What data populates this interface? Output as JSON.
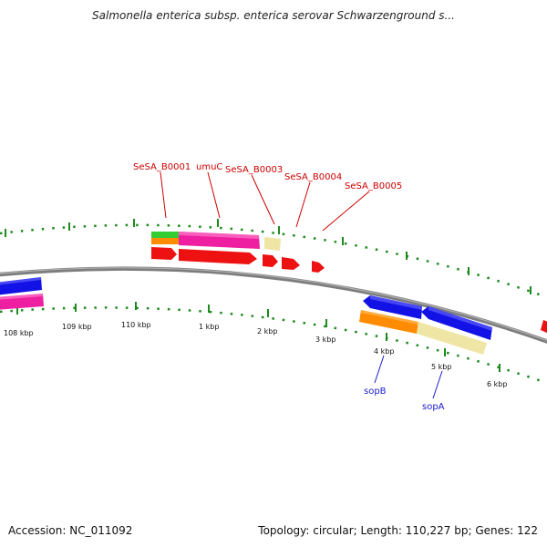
{
  "title": "Salmonella enterica subsp. enterica serovar Schwarzenground s...",
  "footer": {
    "accession": "Accession: NC_011092",
    "summary": "Topology: circular; Length: 110,227 bp; Genes: 122"
  },
  "colors": {
    "backbone": "#8a8a8a",
    "tick": "#1e8a1e",
    "cds_red": "#ee1111",
    "blue": "#1212e6",
    "magenta": "#ee1fa0",
    "orange": "#ff8c00",
    "khaki": "#efe6a6",
    "green": "#33cc33",
    "label_red": "#cc0000",
    "label_blue": "#1a1acc"
  },
  "tick_labels": [
    "108 kbp",
    "109 kbp",
    "110 kbp",
    "1 kbp",
    "2 kbp",
    "3 kbp",
    "4 kbp",
    "5 kbp",
    "6 kbp"
  ],
  "gene_labels_top": [
    "SeSA_B0001",
    "umuC",
    "SeSA_B0003",
    "SeSA_B0004",
    "SeSA_B0005"
  ],
  "gene_labels_bottom": [
    "sopB",
    "sopA"
  ]
}
